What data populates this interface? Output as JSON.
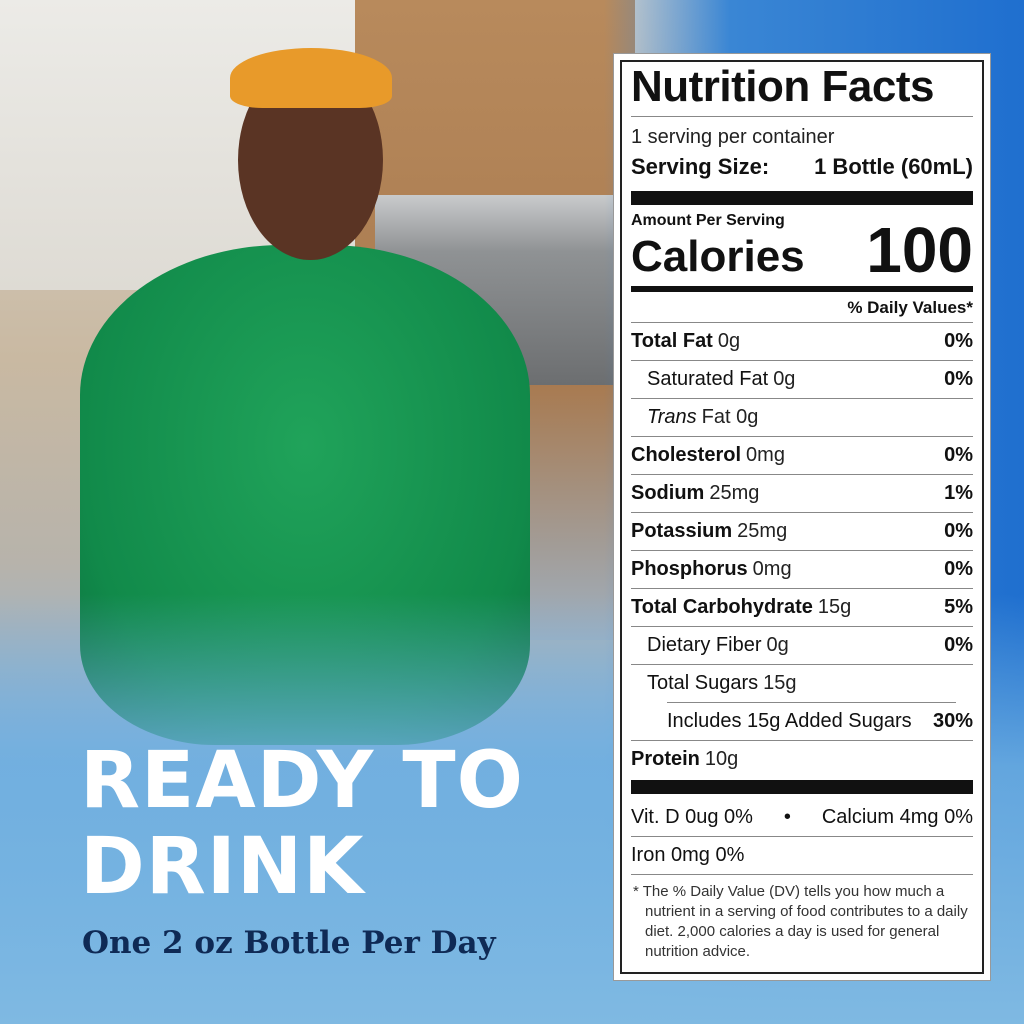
{
  "headline": {
    "line1": "READY TO",
    "line2": "DRINK",
    "subtitle": "One 2 oz Bottle Per Day"
  },
  "label": {
    "title": "Nutrition Facts",
    "servings": "1 serving per container",
    "serving_size_label": "Serving Size:",
    "serving_size_value": "1 Bottle (60mL)",
    "amount_per_serving": "Amount Per Serving",
    "calories_label": "Calories",
    "calories_value": "100",
    "dv_header": "% Daily Values*",
    "rows": [
      {
        "name": "Total Fat",
        "amount": "0g",
        "pct": "0%"
      },
      {
        "name": "Saturated Fat",
        "amount": "0g",
        "pct": "0%"
      },
      {
        "name": "Trans",
        "amount": "Fat 0g",
        "pct": ""
      },
      {
        "name": "Cholesterol",
        "amount": "0mg",
        "pct": "0%"
      },
      {
        "name": "Sodium",
        "amount": "25mg",
        "pct": "1%"
      },
      {
        "name": "Potassium",
        "amount": "25mg",
        "pct": "0%"
      },
      {
        "name": "Phosphorus",
        "amount": "0mg",
        "pct": "0%"
      },
      {
        "name": "Total Carbohydrate",
        "amount": "15g",
        "pct": "5%"
      },
      {
        "name": "Dietary Fiber",
        "amount": "0g",
        "pct": "0%"
      },
      {
        "name": "Total Sugars",
        "amount": "15g",
        "pct": ""
      },
      {
        "name": "Includes 15g Added Sugars",
        "amount": "",
        "pct": "30%"
      },
      {
        "name": "Protein",
        "amount": "10g",
        "pct": ""
      }
    ],
    "vit_d": "Vit. D 0ug 0%",
    "bullet": "•",
    "calcium": "Calcium 4mg 0%",
    "iron": "Iron 0mg 0%",
    "footnote": "* The % Daily Value (DV) tells you how much a nutrient in a serving of food contributes to a daily diet. 2,000 calories a day is used for general nutrition advice."
  }
}
